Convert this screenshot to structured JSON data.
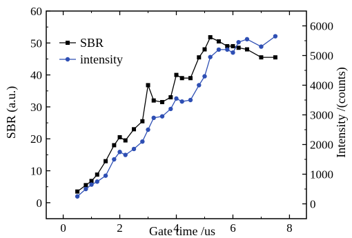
{
  "chart_data": {
    "type": "line",
    "xlabel": "Gate time /us",
    "ylabel_left": "SBR (a.u.)",
    "ylabel_right": "Intensity /(counts)",
    "xlim": [
      -0.6,
      8.6
    ],
    "ylim_left": [
      -5,
      60
    ],
    "ylim_right": [
      -500,
      6500
    ],
    "x_ticks": [
      0,
      2,
      4,
      6,
      8
    ],
    "y_ticks_left": [
      0,
      10,
      20,
      30,
      40,
      50,
      60
    ],
    "y_ticks_right": [
      0,
      1000,
      2000,
      3000,
      4000,
      5000,
      6000
    ],
    "grid": false,
    "legend_position": "top-left",
    "series": [
      {
        "name": "SBR",
        "axis": "left",
        "color": "#000000",
        "marker": "square",
        "x": [
          0.5,
          0.8,
          1.0,
          1.2,
          1.5,
          1.8,
          2.0,
          2.2,
          2.5,
          2.8,
          3.0,
          3.2,
          3.5,
          3.8,
          4.0,
          4.2,
          4.5,
          4.8,
          5.0,
          5.2,
          5.5,
          5.8,
          6.0,
          6.2,
          6.5,
          7.0,
          7.5
        ],
        "values": [
          3.5,
          5.5,
          6.8,
          8.8,
          13.0,
          18.0,
          20.5,
          19.5,
          23.0,
          25.5,
          36.8,
          32.0,
          31.5,
          33.0,
          40.0,
          39.0,
          39.0,
          45.5,
          48.0,
          51.8,
          50.5,
          49.0,
          49.0,
          48.5,
          48.0,
          45.5,
          45.5
        ]
      },
      {
        "name": "intensity",
        "axis": "right",
        "color": "#2e4fb4",
        "marker": "circle",
        "x": [
          0.5,
          0.8,
          1.0,
          1.2,
          1.5,
          1.8,
          2.0,
          2.2,
          2.5,
          2.8,
          3.0,
          3.2,
          3.5,
          3.8,
          4.0,
          4.2,
          4.5,
          4.8,
          5.0,
          5.2,
          5.5,
          5.8,
          6.0,
          6.2,
          6.5,
          7.0,
          7.5
        ],
        "values": [
          250,
          500,
          650,
          750,
          950,
          1500,
          1750,
          1650,
          1850,
          2100,
          2500,
          2900,
          2950,
          3200,
          3550,
          3450,
          3500,
          4000,
          4300,
          4950,
          5200,
          5200,
          5100,
          5450,
          5550,
          5300,
          5650
        ]
      }
    ]
  }
}
